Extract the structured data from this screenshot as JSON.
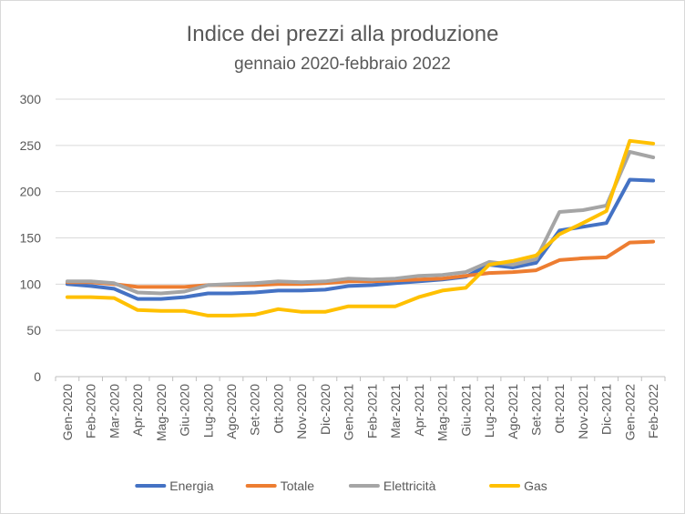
{
  "chart_data": {
    "type": "line",
    "title": "Indice dei prezzi alla produzione",
    "subtitle": "gennaio 2020-febbraio 2022",
    "xlabel": "",
    "ylabel": "",
    "ylim": [
      0,
      300
    ],
    "yticks": [
      "0",
      "50",
      "100",
      "150",
      "200",
      "250",
      "300"
    ],
    "grid": true,
    "legend_position": "bottom",
    "categories": [
      "Gen-2020",
      "Feb-2020",
      "Mar-2020",
      "Apr-2020",
      "Mag-2020",
      "Giu-2020",
      "Lug-2020",
      "Ago-2020",
      "Set-2020",
      "Ott-2020",
      "Nov-2020",
      "Dic-2020",
      "Gen-2021",
      "Feb-2021",
      "Mar-2021",
      "Apr-2021",
      "Mag-2021",
      "Giu-2021",
      "Lug-2021",
      "Ago-2021",
      "Set-2021",
      "Ott-2021",
      "Nov-2021",
      "Dic-2021",
      "Gen-2022",
      "Feb-2022"
    ],
    "series": [
      {
        "name": "Energia",
        "color": "#4472C4",
        "values": [
          100,
          98,
          95,
          84,
          84,
          86,
          90,
          90,
          91,
          93,
          93,
          94,
          98,
          99,
          101,
          103,
          105,
          108,
          121,
          118,
          123,
          158,
          162,
          166,
          213,
          212
        ]
      },
      {
        "name": "Totale",
        "color": "#ED7D31",
        "values": [
          102,
          102,
          100,
          97,
          97,
          97,
          99,
          99,
          99,
          100,
          100,
          101,
          103,
          103,
          104,
          105,
          106,
          109,
          112,
          113,
          115,
          126,
          128,
          129,
          145,
          146
        ]
      },
      {
        "name": "Elettricità",
        "color": "#A5A5A5",
        "values": [
          103,
          103,
          101,
          91,
          90,
          92,
          99,
          100,
          101,
          103,
          102,
          103,
          106,
          105,
          106,
          109,
          110,
          113,
          124,
          121,
          127,
          178,
          180,
          185,
          243,
          237
        ]
      },
      {
        "name": "Gas",
        "color": "#FFC000",
        "values": [
          86,
          86,
          85,
          72,
          71,
          71,
          66,
          66,
          67,
          73,
          70,
          70,
          76,
          76,
          76,
          86,
          93,
          96,
          121,
          125,
          131,
          154,
          166,
          179,
          255,
          252
        ]
      }
    ]
  }
}
